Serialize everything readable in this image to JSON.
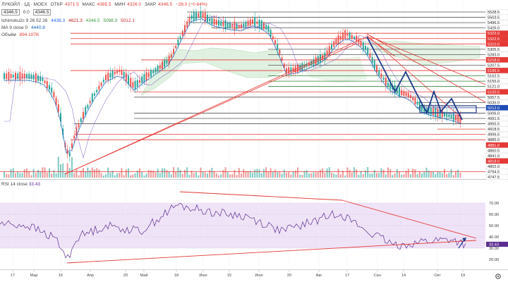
{
  "header": {
    "symbol": "ЛУКОЙЛ · 1Д · MOEX",
    "open_label": "ОТКР",
    "open": "4371.5",
    "high_label": "МАКС",
    "high": "4385.5",
    "low_label": "МИН",
    "low": "4326.0",
    "close_label": "ЗАКР",
    "close": "4346.5",
    "change": "−28.0 (−0.64%)",
    "price_box": "4346.5",
    "price_box2": "0.0",
    "price_box3": "4346.5"
  },
  "indicators": {
    "ichimoku": "Ichimoku2c 9 26 52 26",
    "ichimoku_values": [
      "4438.3",
      "4621.3",
      "4346.5",
      "5098.3",
      "5012.1"
    ],
    "ma": "MA 9 close 0",
    "ma_value": "4440.8",
    "volume_label": "Объём",
    "volume_value": "894.107K"
  },
  "rsi": {
    "label": "RSI 14 close",
    "value": "33.43",
    "levels": [
      "70.00",
      "60.00",
      "50.00",
      "40.00",
      "30.00",
      "20.00"
    ]
  },
  "price_axis": [
    {
      "label": "5528.5",
      "color": "#ffffff"
    },
    {
      "label": "5503.5",
      "color": "#ffffff"
    },
    {
      "label": "5496.5",
      "color": "#ffffff"
    },
    {
      "label": "5426.0",
      "color": "#ffffff"
    },
    {
      "label": "5323.0",
      "color": "#e53935"
    },
    {
      "label": "5322.5",
      "color": "#e53935"
    },
    {
      "label": "5310.0",
      "color": "#e53935"
    },
    {
      "label": "5305.5",
      "color": "#ffffff"
    },
    {
      "label": "5283.0",
      "color": "#ffffff"
    },
    {
      "label": "5218.0",
      "color": "#e53935"
    },
    {
      "label": "5207.5",
      "color": "#ffffff"
    },
    {
      "label": "5186.5",
      "color": "#e53935"
    },
    {
      "label": "5162.5",
      "color": "#ffffff"
    },
    {
      "label": "5155.0",
      "color": "#ffffff"
    },
    {
      "label": "5121.0",
      "color": "#ffffff"
    },
    {
      "label": "5100.5",
      "color": "#e53935"
    },
    {
      "label": "5057.5",
      "color": "#ffffff"
    },
    {
      "label": "5035.0",
      "color": "#ffffff"
    },
    {
      "label": "5012.0",
      "color": "#1e4db7"
    },
    {
      "label": "5006.0",
      "color": "#ffffff"
    },
    {
      "label": "4991.5",
      "color": "#ffffff"
    },
    {
      "label": "4955.5",
      "color": "#ffffff"
    },
    {
      "label": "4918.5",
      "color": "#ffffff"
    },
    {
      "label": "4906.5",
      "color": "#ffffff"
    },
    {
      "label": "4885.0",
      "color": "#ffffff"
    },
    {
      "label": "4881.0",
      "color": "#e53935"
    },
    {
      "label": "4860.5",
      "color": "#ffffff"
    },
    {
      "label": "4841.0",
      "color": "#ffffff"
    },
    {
      "label": "4818.0",
      "color": "#e53935"
    },
    {
      "label": "4802.0",
      "color": "#ffffff"
    },
    {
      "label": "4794.5",
      "color": "#ffffff"
    },
    {
      "label": "4747.5",
      "color": "#ffffff"
    }
  ],
  "time_axis": [
    "17",
    "Мар",
    "16",
    "Апр",
    "20",
    "Май",
    "18",
    "Июн",
    "15",
    "Июл",
    "20",
    "Авг",
    "17",
    "Сен",
    "14",
    "Окт",
    "19"
  ],
  "icons": {
    "settings": "gear-icon"
  },
  "colors": {
    "up": "#26a69a",
    "down": "#ef5350",
    "line": "#e53935",
    "trend": "#1e3a8a",
    "rsi": "#5c2d91",
    "rsi_bg": "#efe3f7"
  }
}
